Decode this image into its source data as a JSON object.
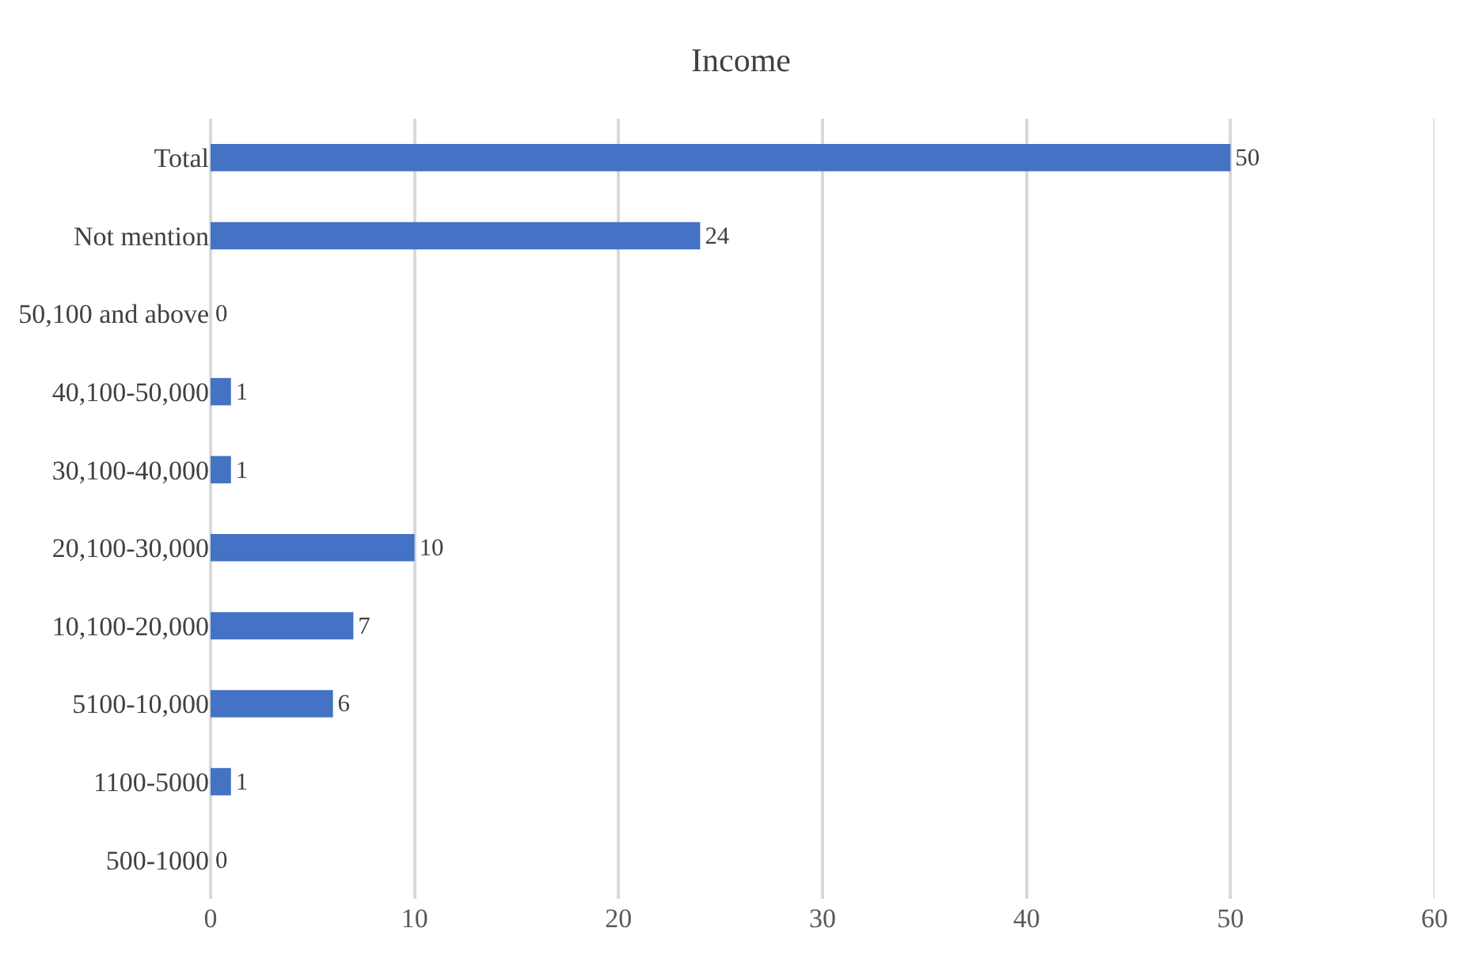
{
  "chart_data": {
    "type": "bar",
    "orientation": "horizontal",
    "title": "Income",
    "categories": [
      "Total",
      "Not mention",
      "50,100 and above",
      "40,100-50,000",
      "30,100-40,000",
      "20,100-30,000",
      "10,100-20,000",
      "5100-10,000",
      "1100-5000",
      "500-1000"
    ],
    "values": [
      50,
      24,
      0,
      1,
      1,
      10,
      7,
      6,
      1,
      0
    ],
    "color": "#4472c4",
    "xlim": [
      0,
      60
    ],
    "xticks": [
      0,
      10,
      20,
      30,
      40,
      50,
      60
    ],
    "grid": "x",
    "data_labels": true
  }
}
